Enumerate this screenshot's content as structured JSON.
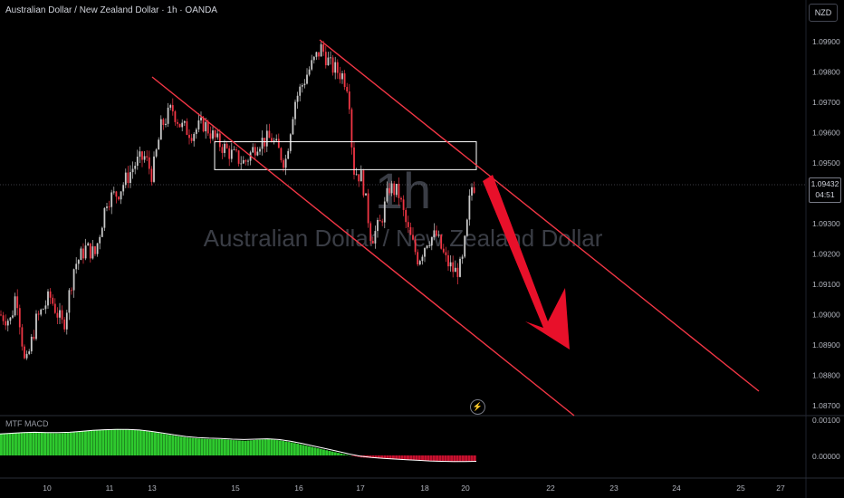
{
  "header": {
    "title": "Australian Dollar / New Zealand Dollar · 1h · OANDA"
  },
  "currency_badge": "NZD",
  "watermark": {
    "interval": "1h",
    "symbol_name": "Australian Dollar / New Zealand Dollar"
  },
  "last_price": {
    "value": "1.09432",
    "countdown": "04:51"
  },
  "macd_label": "MTF MACD",
  "colors": {
    "background": "#000000",
    "up_candle": "#c9c9c9",
    "down_candle": "#f23645",
    "channel": "#f23645",
    "arrow": "#e8102a",
    "zone": "#ffffff",
    "macd_positive": "#2ec92e",
    "macd_negative": "#c8102e",
    "macd_signal": "#ffffff",
    "axis_text": "#b2b5be",
    "watermark": "#3a3d45"
  },
  "icons": {
    "replay": "lightning-icon"
  },
  "chart_data": [
    {
      "type": "candlestick",
      "title": "Australian Dollar / New Zealand Dollar · 1h · OANDA",
      "yticks": [
        "1.09900",
        "1.09800",
        "1.09700",
        "1.09600",
        "1.09500",
        "1.09300",
        "1.09200",
        "1.09100",
        "1.09000",
        "1.08900",
        "1.08800",
        "1.08700"
      ],
      "xticks": [
        "10",
        "11",
        "13",
        "15",
        "16",
        "17",
        "18",
        "20",
        "22",
        "23",
        "24",
        "25",
        "27"
      ],
      "ylim": [
        1.0869,
        1.0998
      ],
      "grid": false,
      "last_price": 1.09432,
      "ohlc_keypoints": [
        {
          "x": 0,
          "y": 1.09
        },
        {
          "x": 12,
          "y": 1.0898
        },
        {
          "x": 18,
          "y": 1.0908
        },
        {
          "x": 28,
          "y": 1.0882
        },
        {
          "x": 40,
          "y": 1.0898
        },
        {
          "x": 55,
          "y": 1.0906
        },
        {
          "x": 70,
          "y": 1.0896
        },
        {
          "x": 82,
          "y": 1.0916
        },
        {
          "x": 95,
          "y": 1.0922
        },
        {
          "x": 105,
          "y": 1.092
        },
        {
          "x": 118,
          "y": 1.0938
        },
        {
          "x": 130,
          "y": 1.094
        },
        {
          "x": 140,
          "y": 1.0945
        },
        {
          "x": 150,
          "y": 1.095
        },
        {
          "x": 160,
          "y": 1.0952
        },
        {
          "x": 168,
          "y": 1.0946
        },
        {
          "x": 178,
          "y": 1.0962
        },
        {
          "x": 190,
          "y": 1.0968
        },
        {
          "x": 200,
          "y": 1.0962
        },
        {
          "x": 212,
          "y": 1.096
        },
        {
          "x": 225,
          "y": 1.0963
        },
        {
          "x": 240,
          "y": 1.0957
        },
        {
          "x": 255,
          "y": 1.0953
        },
        {
          "x": 270,
          "y": 1.095
        },
        {
          "x": 285,
          "y": 1.0957
        },
        {
          "x": 300,
          "y": 1.0958
        },
        {
          "x": 315,
          "y": 1.095
        },
        {
          "x": 325,
          "y": 1.097
        },
        {
          "x": 340,
          "y": 1.098
        },
        {
          "x": 355,
          "y": 1.0988
        },
        {
          "x": 365,
          "y": 1.0982
        },
        {
          "x": 378,
          "y": 1.0979
        },
        {
          "x": 385,
          "y": 1.0975
        },
        {
          "x": 390,
          "y": 1.0948
        },
        {
          "x": 400,
          "y": 1.0945
        },
        {
          "x": 410,
          "y": 1.0925
        },
        {
          "x": 420,
          "y": 1.093
        },
        {
          "x": 430,
          "y": 1.0942
        },
        {
          "x": 440,
          "y": 1.094
        },
        {
          "x": 450,
          "y": 1.0928
        },
        {
          "x": 462,
          "y": 1.0918
        },
        {
          "x": 472,
          "y": 1.0925
        },
        {
          "x": 482,
          "y": 1.0926
        },
        {
          "x": 492,
          "y": 1.0918
        },
        {
          "x": 502,
          "y": 1.0914
        },
        {
          "x": 510,
          "y": 1.0916
        },
        {
          "x": 516,
          "y": 1.093
        },
        {
          "x": 520,
          "y": 1.0942
        },
        {
          "x": 526,
          "y": 1.0943
        }
      ],
      "annotations": {
        "supply_zone": {
          "y_top": 1.0957,
          "y_bottom": 1.09478,
          "from_tick": "13",
          "to_tick": "20"
        },
        "channel_upper": [
          {
            "tick": "16",
            "y": 1.0991
          },
          {
            "tick": "27",
            "y": 1.0877
          }
        ],
        "channel_lower": [
          {
            "tick": "13",
            "y": 1.098
          },
          {
            "tick": "22",
            "y": 1.0869
          }
        ],
        "arrow_direction": "down"
      }
    },
    {
      "type": "histogram",
      "title": "MTF MACD",
      "yticks": [
        "0.00100",
        "0.00000"
      ],
      "ylim": [
        -0.0003,
        0.0011
      ],
      "series": [
        {
          "name": "histogram",
          "values": [
            0.00066,
            0.00068,
            0.0007,
            0.0007,
            0.00069,
            0.00068,
            0.0007,
            0.00074,
            0.00078,
            0.0008,
            0.00081,
            0.0008,
            0.00077,
            0.00072,
            0.00066,
            0.0006,
            0.00055,
            0.00052,
            0.0005,
            0.0005,
            0.00047,
            0.00045,
            0.00048,
            0.0005,
            0.00046,
            0.0004,
            0.00032,
            0.00024,
            0.00016,
            8e-05,
            0.0,
            -6e-05,
            -8e-05,
            -0.0001,
            -0.00012,
            -0.00014,
            -0.00016,
            -0.00018,
            -0.00019,
            -0.0002,
            -0.00019,
            -0.00018
          ]
        },
        {
          "name": "signal",
          "values": [
            0.00066,
            0.00068,
            0.0007,
            0.00071,
            0.0007,
            0.0007,
            0.00071,
            0.00074,
            0.00077,
            0.00079,
            0.0008,
            0.0008,
            0.00078,
            0.00074,
            0.00069,
            0.00063,
            0.00058,
            0.00055,
            0.00053,
            0.00052,
            0.0005,
            0.00049,
            0.0005,
            0.00051,
            0.00049,
            0.00044,
            0.00037,
            0.00029,
            0.00021,
            0.00013,
            5e-05,
            -2e-05,
            -6e-05,
            -9e-05,
            -0.00011,
            -0.00013,
            -0.00015,
            -0.00017,
            -0.00018,
            -0.00019,
            -0.00019,
            -0.00018
          ]
        }
      ]
    }
  ]
}
